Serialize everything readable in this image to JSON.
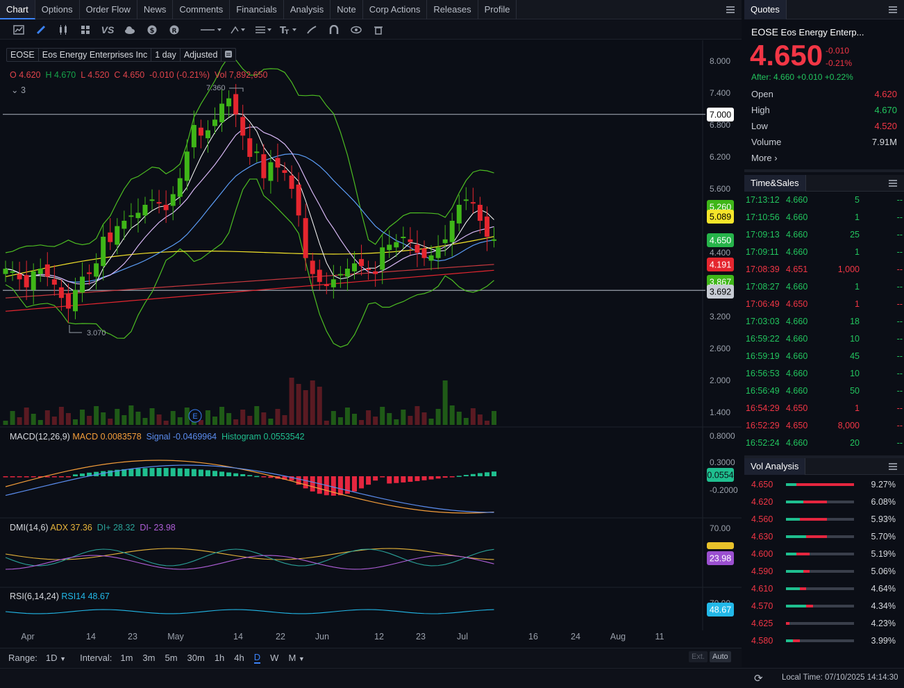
{
  "tabs": [
    {
      "label": "Chart",
      "active": true
    },
    {
      "label": "Options"
    },
    {
      "label": "Order Flow"
    },
    {
      "label": "News"
    },
    {
      "label": "Comments"
    },
    {
      "label": "Financials"
    },
    {
      "label": "Analysis"
    },
    {
      "label": "Note"
    },
    {
      "label": "Corp Actions"
    },
    {
      "label": "Releases"
    },
    {
      "label": "Profile"
    }
  ],
  "toolbar": {
    "icons": [
      "chart-type-icon",
      "pencil-icon",
      "candlestick-icon",
      "layout-grid-icon",
      "compare-vs-icon",
      "cloud-icon",
      "dollar-icon",
      "replay-icon",
      "line-style-icon",
      "draw-tools-icon",
      "indicators-icon",
      "text-tool-icon",
      "brush-icon",
      "magnet-icon",
      "eye-icon",
      "trash-icon"
    ],
    "vs_label": "VS"
  },
  "header": {
    "symbol": "EOSE",
    "name": "Eos Energy Enterprises Inc",
    "period": "1 day",
    "adjust": "Adjusted"
  },
  "ohlc": {
    "o_label": "O",
    "o": "4.620",
    "h_label": "H",
    "h": "4.670",
    "l_label": "L",
    "l": "4.520",
    "c_label": "C",
    "c": "4.650",
    "chg": "-0.010 (-0.21%)",
    "vol_label": "Vol",
    "vol": "7,892,650"
  },
  "collapse": {
    "count": "3"
  },
  "annotations": {
    "high": "7.360",
    "low": "3.070",
    "earnings": "E"
  },
  "price_axis": [
    "8.000",
    "7.400",
    "6.800",
    "6.200",
    "5.600",
    "5.000",
    "4.400",
    "3.800",
    "3.200",
    "2.600",
    "2.000",
    "1.400"
  ],
  "price_tags": [
    {
      "text": "7.000",
      "bg": "#ffffff",
      "fg": "#000000"
    },
    {
      "text": "5.260",
      "bg": "#3fb618",
      "fg": "#ffffff"
    },
    {
      "text": "5.089",
      "bg": "#f5e52a",
      "fg": "#000000"
    },
    {
      "text": "4.650",
      "bg": "#26b34a",
      "fg": "#ffffff"
    },
    {
      "text": "4.191",
      "bg": "#e5262f",
      "fg": "#ffffff"
    },
    {
      "text": "3.867",
      "bg": "#3fb618",
      "fg": "#ffffff"
    },
    {
      "text": "3.692",
      "bg": "#c8ccd4",
      "fg": "#000000"
    }
  ],
  "macd": {
    "label": "MACD(12,26,9)",
    "macd_text": "MACD 0.0083578",
    "signal_text": "Signal -0.0469964",
    "hist_text": "Histogram 0.0553542",
    "axis": [
      "0.8000",
      "0.3000",
      "-0.2000"
    ],
    "tag": "0.0554"
  },
  "dmi": {
    "label": "DMI(14,6)",
    "adx_text": "ADX 37.36",
    "dip_text": "DI+ 28.32",
    "dim_text": "DI- 23.98",
    "axis": [
      "70.00"
    ],
    "tag": "23.98"
  },
  "rsi": {
    "label": "RSI(6,14,24)",
    "rsi_text": "RSI14 48.67",
    "axis": [
      "70.00"
    ],
    "tag": "48.67"
  },
  "time_axis": [
    "Apr",
    "14",
    "23",
    "May",
    "14",
    "22",
    "Jun",
    "12",
    "23",
    "Jul",
    "16",
    "24",
    "Aug",
    "11"
  ],
  "bottom": {
    "range_label": "Range:",
    "range_value": "1D",
    "interval_label": "Interval:",
    "intervals": [
      "1m",
      "3m",
      "5m",
      "30m",
      "1h",
      "4h",
      "D",
      "W",
      "M"
    ],
    "active_interval": "D",
    "ext": "Ext.",
    "auto": "Auto"
  },
  "status": {
    "local_time": "Local Time: 07/10/2025 14:14:30"
  },
  "quotes": {
    "title": "Quotes",
    "symbol": "EOSE",
    "name": "Eos Energy Enterp...",
    "price": "4.650",
    "chg": "-0.010",
    "chg_pct": "-0.21%",
    "after": "After: 4.660 +0.010 +0.22%",
    "rows": [
      {
        "label": "Open",
        "value": "4.620",
        "color": "#f23645"
      },
      {
        "label": "High",
        "value": "4.670",
        "color": "#22c55e"
      },
      {
        "label": "Low",
        "value": "4.520",
        "color": "#f23645"
      },
      {
        "label": "Volume",
        "value": "7.91M",
        "color": "#d6d9de"
      }
    ],
    "more": "More ›"
  },
  "time_sales": {
    "title": "Time&Sales",
    "rows": [
      {
        "t": "17:13:12",
        "p": "4.660",
        "v": "5",
        "d": "--",
        "up": true
      },
      {
        "t": "17:10:56",
        "p": "4.660",
        "v": "1",
        "d": "--",
        "up": true
      },
      {
        "t": "17:09:13",
        "p": "4.660",
        "v": "25",
        "d": "--",
        "up": true
      },
      {
        "t": "17:09:11",
        "p": "4.660",
        "v": "1",
        "d": "--",
        "up": true
      },
      {
        "t": "17:08:39",
        "p": "4.651",
        "v": "1,000",
        "d": "--",
        "up": false
      },
      {
        "t": "17:08:27",
        "p": "4.660",
        "v": "1",
        "d": "--",
        "up": true
      },
      {
        "t": "17:06:49",
        "p": "4.650",
        "v": "1",
        "d": "--",
        "up": false
      },
      {
        "t": "17:03:03",
        "p": "4.660",
        "v": "18",
        "d": "--",
        "up": true
      },
      {
        "t": "16:59:22",
        "p": "4.660",
        "v": "10",
        "d": "--",
        "up": true
      },
      {
        "t": "16:59:19",
        "p": "4.660",
        "v": "45",
        "d": "--",
        "up": true
      },
      {
        "t": "16:56:53",
        "p": "4.660",
        "v": "10",
        "d": "--",
        "up": true
      },
      {
        "t": "16:56:49",
        "p": "4.660",
        "v": "50",
        "d": "--",
        "up": true
      },
      {
        "t": "16:54:29",
        "p": "4.650",
        "v": "1",
        "d": "--",
        "up": false
      },
      {
        "t": "16:52:29",
        "p": "4.650",
        "v": "8,000",
        "d": "--",
        "up": false
      },
      {
        "t": "16:52:24",
        "p": "4.660",
        "v": "20",
        "d": "--",
        "up": true
      }
    ]
  },
  "vol_analysis": {
    "title": "Vol Analysis",
    "rows": [
      {
        "price": "4.650",
        "pct": "9.27%",
        "buy": 0.15,
        "sell": 0.85
      },
      {
        "price": "4.620",
        "pct": "6.08%",
        "buy": 0.25,
        "sell": 0.35
      },
      {
        "price": "4.560",
        "pct": "5.93%",
        "buy": 0.2,
        "sell": 0.4
      },
      {
        "price": "4.630",
        "pct": "5.70%",
        "buy": 0.3,
        "sell": 0.3
      },
      {
        "price": "4.600",
        "pct": "5.19%",
        "buy": 0.15,
        "sell": 0.2
      },
      {
        "price": "4.590",
        "pct": "5.06%",
        "buy": 0.25,
        "sell": 0.1
      },
      {
        "price": "4.610",
        "pct": "4.64%",
        "buy": 0.2,
        "sell": 0.1
      },
      {
        "price": "4.570",
        "pct": "4.34%",
        "buy": 0.3,
        "sell": 0.1
      },
      {
        "price": "4.625",
        "pct": "4.23%",
        "buy": 0.0,
        "sell": 0.05
      },
      {
        "price": "4.580",
        "pct": "3.99%",
        "buy": 0.1,
        "sell": 0.1
      }
    ]
  }
}
